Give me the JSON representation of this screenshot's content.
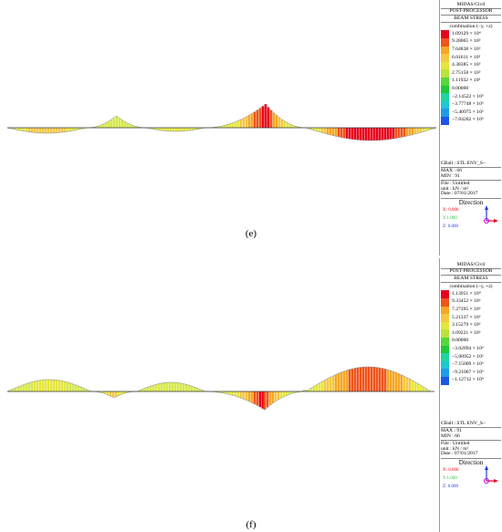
{
  "panels": [
    {
      "caption": "(e)",
      "legend": {
        "header": [
          "MIDAS/Civil",
          "POST-PROCESSOR",
          "BEAM STRESS"
        ],
        "combination": "combination (−y, +z)",
        "values": [
          "1.09129 × 10⁴",
          "9.28065 × 10³",
          "7.64838 × 10³",
          "6.01611 × 10³",
          "4.38385 × 10³",
          "2.75158 × 10³",
          "1.11932 × 10³",
          "0.00000",
          "−2.14522 × 10³",
          "−3.77748 × 10³",
          "−5.40975 × 10³",
          "−7.04202 × 10³"
        ],
        "colors": [
          "#e8001c",
          "#f0541c",
          "#f5a623",
          "#f5c842",
          "#e6e63a",
          "#b6e43a",
          "#56d63a",
          "#1ec83c",
          "#1ed6a0",
          "#1ec8d6",
          "#1e9be6",
          "#1e55e6"
        ],
        "cball": "CBall : STL ENV_S−",
        "max": "MAX : 66",
        "min": "MIN : 91",
        "file": "File : Untitled",
        "unit": "unit : kN / m²",
        "date": "Date : 07/01/2017",
        "direction": "Direction",
        "x": "X: 0.000",
        "y": "Y:1.000",
        "z": "Z: 0.000"
      }
    },
    {
      "caption": "(f)",
      "legend": {
        "header": [
          "MIDAS/Civil",
          "POST-PROCESSOR",
          "BEAM STRESS"
        ],
        "combination": "combination (−y, +z)",
        "values": [
          "1.13951 × 10⁴",
          "9.33452 × 10³",
          "7.27395 × 10³",
          "5.21337 × 10³",
          "3.15279 × 10³",
          "1.09221 × 10³",
          "0.00000",
          "−3.02894 × 10³",
          "−5.08952 × 10³",
          "−7.15009 × 10³",
          "−9.21067 × 10³",
          "−1.12712 × 10⁴"
        ],
        "colors": [
          "#e8001c",
          "#f0541c",
          "#f5a623",
          "#f5c842",
          "#e6e63a",
          "#b6e43a",
          "#56d63a",
          "#1ec83c",
          "#1ed6a0",
          "#1ec8d6",
          "#1e9be6",
          "#1e55e6"
        ],
        "cball": "CBall : STL ENV_S−",
        "max": "MAX : 91",
        "min": "MIN : 66",
        "file": "File : Untitled",
        "unit": "unit : kN / m²",
        "date": "Date : 07/01/2017",
        "direction": "Direction",
        "x": "X: 0.000",
        "y": "Y:1.000",
        "z": "Z: 0.000"
      }
    }
  ],
  "theme": {
    "axis_x": "#e8001c",
    "axis_y": "#1ec83c",
    "axis_z": "#1e3ce6",
    "baseline": "#333333"
  }
}
